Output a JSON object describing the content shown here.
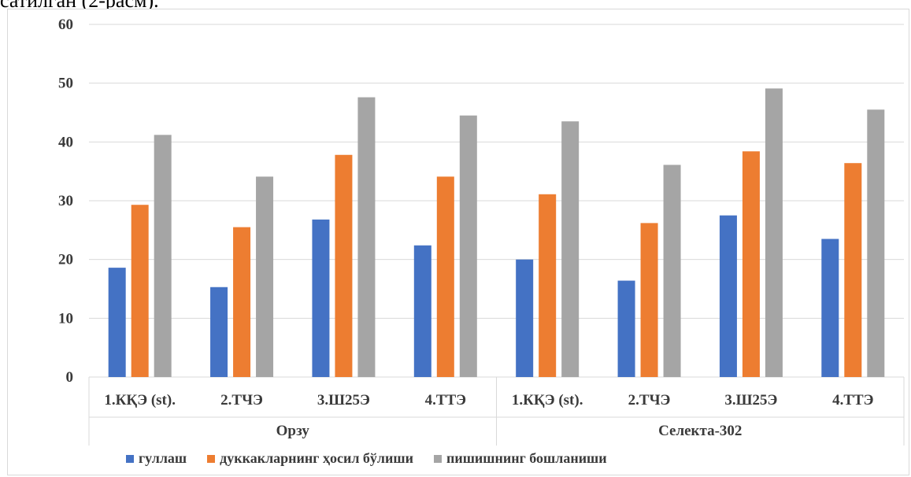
{
  "header_text": "сатилган (2-расм).",
  "chart_data": {
    "type": "bar",
    "groups": [
      {
        "name": "Орзу",
        "categories": [
          "1.КҚЭ (st).",
          "2.ТЧЭ",
          "3.Ш25Э",
          "4.ТТЭ"
        ]
      },
      {
        "name": "Селекта-302",
        "categories": [
          "1.КҚЭ (st).",
          "2.ТЧЭ",
          "3.Ш25Э",
          "4.ТТЭ"
        ]
      }
    ],
    "series": [
      {
        "name": "гуллаш",
        "color": "#4472c4",
        "values": [
          18.6,
          15.3,
          26.8,
          22.4,
          20.0,
          16.4,
          27.5,
          23.5
        ]
      },
      {
        "name": "дуккакларнинг ҳосил бўлиши",
        "color": "#ed7d31",
        "values": [
          29.3,
          25.5,
          37.8,
          34.1,
          31.1,
          26.2,
          38.4,
          36.4
        ]
      },
      {
        "name": "пишишнинг бошланиши",
        "color": "#a5a5a5",
        "values": [
          41.2,
          34.1,
          47.6,
          44.5,
          43.5,
          36.1,
          49.1,
          45.5
        ]
      }
    ],
    "y_ticks": [
      "0",
      "10",
      "20",
      "30",
      "40",
      "50",
      "60"
    ],
    "ylim": [
      0,
      60
    ],
    "grid": true,
    "legend": "bottom"
  }
}
